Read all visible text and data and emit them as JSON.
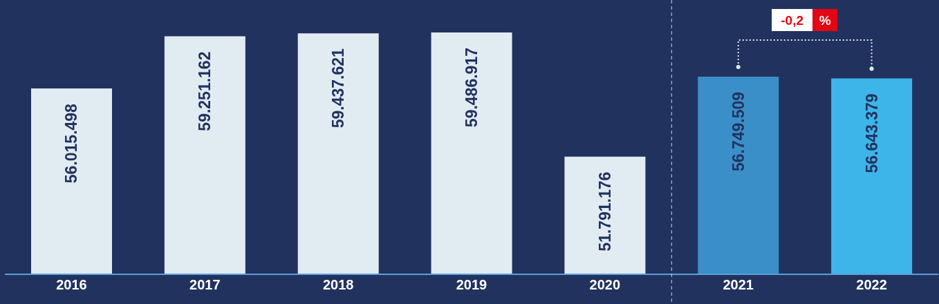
{
  "chart_data": {
    "type": "bar",
    "categories": [
      "2016",
      "2017",
      "2018",
      "2019",
      "2020",
      "2021",
      "2022"
    ],
    "values": [
      56015498,
      59251162,
      59437621,
      59486917,
      51791176,
      56749509,
      56643379
    ],
    "colors": [
      "#e1ebf2",
      "#e1ebf2",
      "#e1ebf2",
      "#e1ebf2",
      "#e1ebf2",
      "#3a8fc8",
      "#3db5e8"
    ],
    "value_labels": [
      "56.015.498",
      "59.251.162",
      "59.437.621",
      "59.486.917",
      "51.791.176",
      "56.749.509",
      "56.643.379"
    ],
    "ylim": [
      44500000,
      61500000
    ],
    "tick_labels": "x",
    "annotations": [
      "-0,2 %"
    ]
  }
}
